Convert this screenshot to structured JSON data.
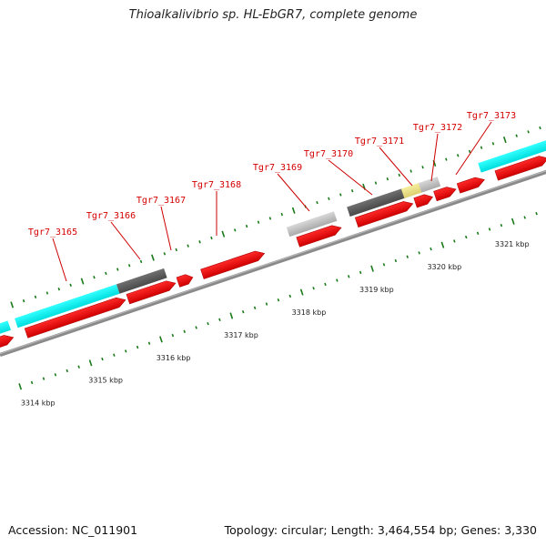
{
  "title": "Thioalkalivibrio sp. HL-EbGR7, complete genome",
  "footer": {
    "accession": "Accession: NC_011901",
    "summary": "Topology: circular; Length: 3,464,554 bp; Genes: 3,330"
  },
  "colors": {
    "backbone": "#8a8a8a",
    "ticks": "#1a7a1a",
    "gene_label": "#d40000",
    "leader": "#cc0000",
    "cds": "#ff0000",
    "rrna": "#00ffff",
    "dark_feature": "#5e5e5e",
    "light_feature": "#c8c8c8",
    "yellow_feature": "#f0e68c"
  },
  "kbp_labels": [
    "3314 kbp",
    "3315 kbp",
    "3316 kbp",
    "3317 kbp",
    "3318 kbp",
    "3319 kbp",
    "3320 kbp",
    "3321 kbp"
  ],
  "gene_labels": [
    "Tgr7_3165",
    "Tgr7_3166",
    "Tgr7_3167",
    "Tgr7_3168",
    "Tgr7_3169",
    "Tgr7_3170",
    "Tgr7_3171",
    "Tgr7_3172",
    "Tgr7_3173"
  ]
}
